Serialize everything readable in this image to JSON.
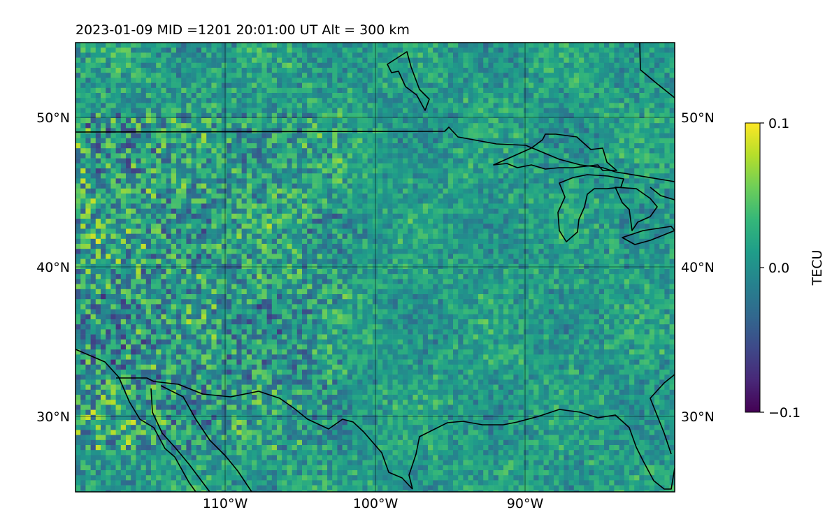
{
  "title": "2023-01-09  MID =1201    20:01:00  UT  Alt = 300 km",
  "colorbar": {
    "label": "TECU",
    "ticks": [
      "0.1",
      "0.0",
      "−0.1"
    ],
    "vmin": -0.1,
    "vmax": 0.1,
    "colormap": "viridis",
    "colors": [
      "#440154",
      "#482878",
      "#3e4989",
      "#31688e",
      "#26828e",
      "#1f9e89",
      "#35b779",
      "#6ece58",
      "#b5de2b",
      "#fde725"
    ]
  },
  "map": {
    "extent_lon": [
      -120,
      -80
    ],
    "extent_lat": [
      25,
      55
    ],
    "lat_ticks": [
      {
        "value": 50,
        "label": "50°N"
      },
      {
        "value": 40,
        "label": "40°N"
      },
      {
        "value": 30,
        "label": "30°N"
      }
    ],
    "lon_ticks": [
      {
        "value": -110,
        "label": "110°W"
      },
      {
        "value": -100,
        "label": "100°W"
      },
      {
        "value": -90,
        "label": "90°W"
      }
    ],
    "gridlines": true
  }
}
